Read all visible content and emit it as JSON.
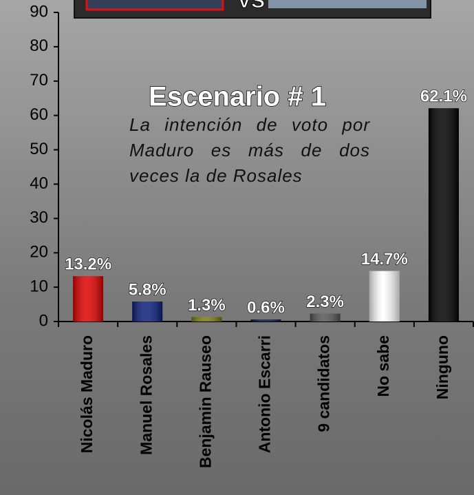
{
  "chart_data": {
    "type": "bar",
    "title": "Escenario # 1",
    "subtitle": "La intención de voto por Maduro es más de dos veces la de Rosales",
    "annotation": "VS",
    "categories": [
      "Nicolás Maduro",
      "Manuel Rosales",
      "Benjamin Rauseo",
      "Antonio Escarri",
      "9 candidatos",
      "No sabe",
      "Ninguno"
    ],
    "values": [
      13.2,
      5.8,
      1.3,
      0.6,
      2.3,
      14.7,
      62.1
    ],
    "value_labels": [
      "13.2%",
      "5.8%",
      "1.3%",
      "0.6%",
      "2.3%",
      "14.7%",
      "62.1%"
    ],
    "colors": [
      "#e00000",
      "#0c1f7a",
      "#7a7a10",
      "#0a1545",
      "#555555",
      "#ffffff",
      "#000000"
    ],
    "ylim": [
      0,
      90
    ],
    "yticks": [
      0,
      10,
      20,
      30,
      40,
      50,
      60,
      70,
      80,
      90
    ],
    "grid": false
  }
}
